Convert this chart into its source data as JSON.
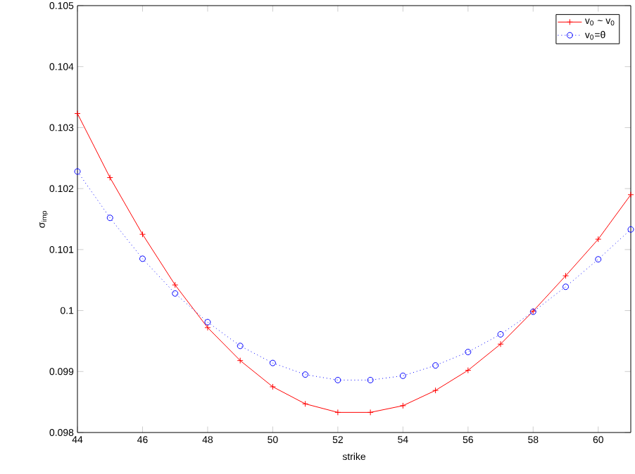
{
  "chart_data": {
    "type": "line",
    "xlabel": "strike",
    "ylabel": "σ$_{imp}$",
    "x": [
      44,
      45,
      46,
      47,
      48,
      49,
      50,
      51,
      52,
      53,
      54,
      55,
      56,
      57,
      58,
      59,
      60,
      61
    ],
    "series": [
      {
        "name": "v$_{0}$ ~ v$_{0}$",
        "color": "#ff0000",
        "marker": "cross",
        "line_style": "solid",
        "values": [
          0.10323,
          0.10218,
          0.10125,
          0.10042,
          0.09972,
          0.09918,
          0.09875,
          0.09847,
          0.09833,
          0.09833,
          0.09844,
          0.09869,
          0.09902,
          0.09945,
          0.09999,
          0.10057,
          0.10117,
          0.1019
        ]
      },
      {
        "name": "v$_{0}$=θ",
        "color": "#0000ff",
        "marker": "circle",
        "line_style": "dotted",
        "values": [
          0.10228,
          0.10152,
          0.10085,
          0.10028,
          0.09981,
          0.09942,
          0.09914,
          0.09895,
          0.09886,
          0.09886,
          0.09893,
          0.0991,
          0.09932,
          0.09961,
          0.09998,
          0.10039,
          0.10084,
          0.10133
        ]
      }
    ],
    "xlim": [
      44,
      61
    ],
    "ylim": [
      0.098,
      0.105
    ],
    "xticks": [
      44,
      46,
      48,
      50,
      52,
      54,
      56,
      58,
      60
    ],
    "yticks": [
      0.098,
      0.099,
      0.1,
      0.101,
      0.102,
      0.103,
      0.104,
      0.105
    ],
    "grid": false,
    "legend": "top right"
  }
}
